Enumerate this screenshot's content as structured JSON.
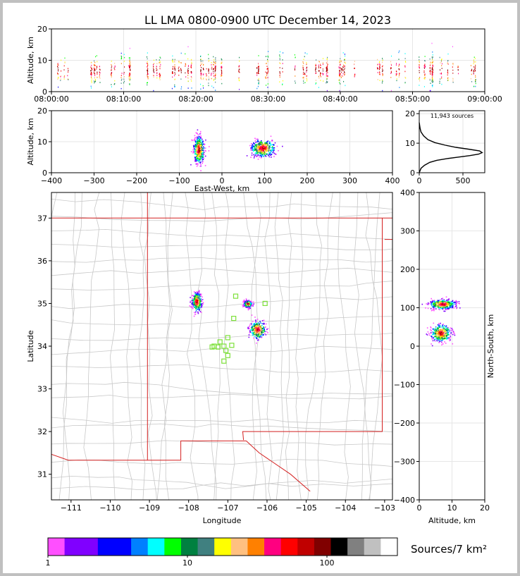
{
  "title": "LL LMA 0800-0900 UTC December 14, 2023",
  "chart_data": [
    {
      "id": "altitude-time",
      "type": "scatter",
      "ylabel": "Altitude, km",
      "xlim": [
        "08:00:00",
        "09:00:00"
      ],
      "ylim": [
        0,
        20
      ],
      "x_ticks": [
        "08:00:00",
        "08:10:00",
        "08:20:00",
        "08:30:00",
        "08:40:00",
        "08:50:00",
        "09:00:00"
      ],
      "y_ticks": [
        0,
        10,
        20
      ],
      "grid": true
    },
    {
      "id": "east-west-altitude",
      "type": "heatmap",
      "xlabel": "East-West, km",
      "ylabel": "Altitude, km",
      "xlim": [
        -400,
        400
      ],
      "ylim": [
        0,
        20
      ],
      "x_ticks": [
        -400,
        -300,
        -200,
        -100,
        0,
        100,
        200,
        300,
        400
      ],
      "y_ticks": [
        0,
        10,
        20
      ],
      "clusters": [
        {
          "x": -55,
          "y": 7.5,
          "x_spread": 12,
          "y_spread": 5
        },
        {
          "x": 95,
          "y": 8,
          "x_spread": 28,
          "y_spread": 3
        }
      ],
      "grid": true
    },
    {
      "id": "altitude-histogram",
      "type": "line",
      "annotation": "11,943 sources",
      "xlim": [
        0,
        750
      ],
      "ylim": [
        0,
        21
      ],
      "x_ticks": [
        0,
        500
      ],
      "y_ticks": [
        0,
        10,
        20
      ],
      "profile_x": [
        0,
        20,
        60,
        120,
        200,
        320,
        450,
        580,
        680,
        720,
        690,
        560,
        420,
        300,
        180,
        100,
        50,
        20,
        10,
        5,
        0
      ],
      "profile_y": [
        0,
        1.5,
        2.5,
        3.5,
        4.2,
        4.8,
        5.3,
        5.8,
        6.3,
        6.8,
        7.4,
        8.0,
        8.6,
        9.3,
        10.2,
        11.2,
        12.5,
        13.8,
        15,
        16,
        17
      ],
      "grid": true
    },
    {
      "id": "plan-map",
      "type": "heatmap",
      "xlabel": "Longitude",
      "ylabel": "Latitude",
      "xlim": [
        -111.5,
        -102.8
      ],
      "ylim": [
        30.4,
        37.6
      ],
      "x_ticks": [
        -111,
        -110,
        -109,
        -108,
        -107,
        -106,
        -105,
        -104,
        -103
      ],
      "y_ticks": [
        31,
        32,
        33,
        34,
        35,
        36,
        37
      ],
      "clusters": [
        {
          "lon": -107.8,
          "lat": 35.05,
          "lon_spread": 0.12,
          "lat_spread": 0.22
        },
        {
          "lon": -106.5,
          "lat": 35.0,
          "lon_spread": 0.1,
          "lat_spread": 0.08
        },
        {
          "lon": -106.25,
          "lat": 34.4,
          "lon_spread": 0.2,
          "lat_spread": 0.2
        }
      ],
      "stations": [
        [
          -106.8,
          35.17
        ],
        [
          -106.05,
          35.0
        ],
        [
          -106.85,
          34.65
        ],
        [
          -107.0,
          34.2
        ],
        [
          -107.2,
          34.1
        ],
        [
          -107.35,
          34.0
        ],
        [
          -107.25,
          33.98
        ],
        [
          -107.1,
          34.0
        ],
        [
          -106.9,
          34.02
        ],
        [
          -107.05,
          33.9
        ],
        [
          -107.0,
          33.78
        ],
        [
          -107.1,
          33.65
        ],
        [
          -107.4,
          33.98
        ]
      ]
    },
    {
      "id": "altitude-north-south",
      "type": "heatmap",
      "xlabel": "Altitude, km",
      "ylabel": "North-South, km",
      "xlim": [
        0,
        20
      ],
      "ylim": [
        -400,
        400
      ],
      "x_ticks": [
        0,
        10,
        20
      ],
      "y_ticks": [
        -400,
        -300,
        -200,
        -100,
        0,
        100,
        200,
        300,
        400
      ],
      "clusters": [
        {
          "x": 7,
          "y": 110,
          "x_spread": 4,
          "y_spread": 12
        },
        {
          "x": 6.5,
          "y": 35,
          "x_spread": 3,
          "y_spread": 22
        }
      ],
      "grid": true
    }
  ],
  "colorbar": {
    "label": "Sources/7 km²",
    "tick_labels": [
      "1",
      "10",
      "100"
    ],
    "colors": [
      "#ff4fff",
      "#8000ff",
      "#8000ff",
      "#0000ff",
      "#0000ff",
      "#0080ff",
      "#00ffff",
      "#00ff00",
      "#008040",
      "#408080",
      "#ffff00",
      "#ffc080",
      "#ff8000",
      "#ff0080",
      "#ff0000",
      "#c00000",
      "#800000",
      "#000000",
      "#808080",
      "#c0c0c0",
      "#ffffff"
    ]
  }
}
